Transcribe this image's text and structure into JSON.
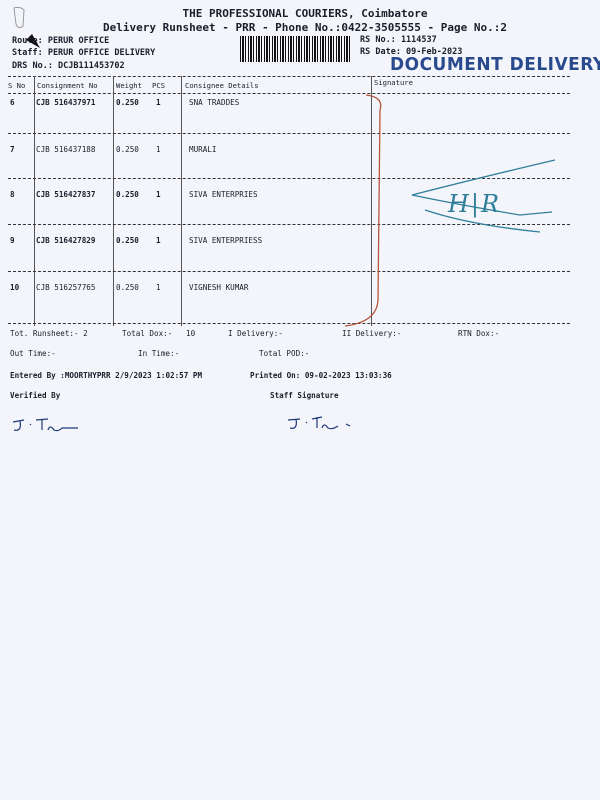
{
  "header": {
    "company": "THE PROFESSIONAL COURIERS, Coimbatore",
    "subtitle": "Delivery Runsheet - PRR - Phone No.:0422-3505555 - Page No.:2",
    "route": "Route: PERUR OFFICE",
    "staff": "Staff: PERUR OFFICE DELIVERY",
    "drs_no": "DRS No.: DCJB111453702",
    "rs_no": "RS No.: 1114537",
    "rs_date": "RS Date: 09-Feb-2023",
    "stamp": "DOCUMENT DELIVERY"
  },
  "table": {
    "columns": [
      "S No",
      "Consignment No",
      "Weight",
      "PCS",
      "Consignee Details",
      "Signature"
    ],
    "rows": [
      {
        "sno": "6",
        "consignment": "CJB 516437971",
        "weight": "0.250",
        "pcs": "1",
        "consignee": "SNA TRADDES"
      },
      {
        "sno": "7",
        "consignment": "CJB 516437188",
        "weight": "0.250",
        "pcs": "1",
        "consignee": "MURALI"
      },
      {
        "sno": "8",
        "consignment": "CJB 516427837",
        "weight": "0.250",
        "pcs": "1",
        "consignee": "SIVA ENTERPRIES"
      },
      {
        "sno": "9",
        "consignment": "CJB 516427829",
        "weight": "0.250",
        "pcs": "1",
        "consignee": "SIVA ENTERPRIESS"
      },
      {
        "sno": "10",
        "consignment": "CJB 516257765",
        "weight": "0.250",
        "pcs": "1",
        "consignee": "VIGNESH KUMAR"
      }
    ]
  },
  "totals": {
    "runsheet": "Tot. Runsheet:- 2",
    "total_dox": "Total Dox:-   10",
    "i_delivery": "I Delivery:-",
    "ii_delivery": "II Delivery:-",
    "rtn_dox": "RTN Dox:-",
    "out_time": "Out Time:-",
    "in_time": "In Time:-",
    "total_pod": "Total POD:-"
  },
  "footer": {
    "entered_by": "Entered By :MOORTHYPRR 2/9/2023 1:02:57 PM",
    "printed_on": "Printed On: 09-02-2023 13:03:36",
    "verified_by": "Verified By",
    "staff_signature": "Staff Signature"
  },
  "handwriting": {
    "annotation": "H|R",
    "signature": "J.Th"
  },
  "colors": {
    "stamp": "#2a4a8e",
    "ink_blue": "#2f7f9a",
    "ink_red": "#b5553a"
  }
}
